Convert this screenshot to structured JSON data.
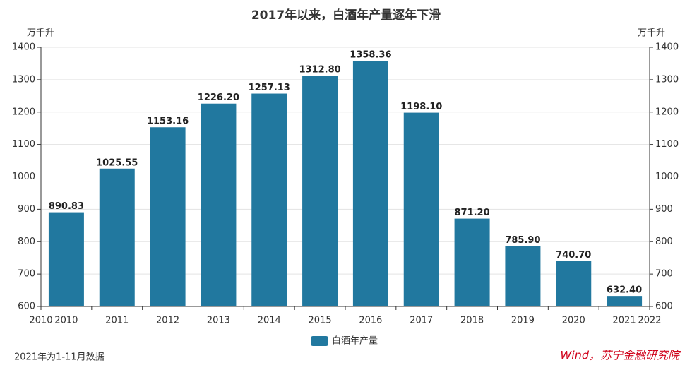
{
  "chart_data": {
    "type": "bar",
    "title": "2017年以来，白酒年产量逐年下滑",
    "y_label": "万千升",
    "y2_label": "万千升",
    "categories": [
      "2010",
      "2011",
      "2012",
      "2013",
      "2014",
      "2015",
      "2016",
      "2017",
      "2018",
      "2019",
      "2020",
      "2021"
    ],
    "x_edge_labels": [
      "2010",
      "2022"
    ],
    "series": [
      {
        "name": "白酒年产量",
        "color": "#21789f",
        "values": [
          890.83,
          1025.55,
          1153.16,
          1226.2,
          1257.13,
          1312.8,
          1358.36,
          1198.1,
          871.2,
          785.9,
          740.7,
          632.4
        ],
        "value_labels": [
          "890.83",
          "1025.55",
          "1153.16",
          "1226.20",
          "1257.13",
          "1312.80",
          "1358.36",
          "1198.10",
          "871.20",
          "785.90",
          "740.70",
          "632.40"
        ]
      }
    ],
    "ylim": [
      600,
      1400
    ],
    "yticks": [
      600,
      700,
      800,
      900,
      1000,
      1100,
      1200,
      1300,
      1400
    ],
    "y2lim": [
      600,
      1400
    ],
    "y2ticks": [
      600,
      700,
      800,
      900,
      1000,
      1100,
      1200,
      1300,
      1400
    ],
    "grid": true,
    "legend": "bottom",
    "footnote": "2021年为1-11月数据",
    "source": "Wind，苏宁金融研究院"
  }
}
